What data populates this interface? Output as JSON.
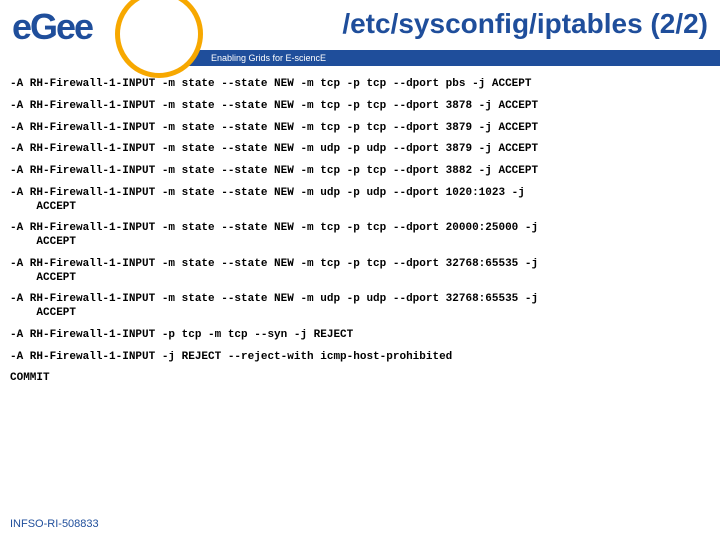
{
  "header": {
    "logo_text": "eGee",
    "title": "/etc/sysconfig/iptables (2/2)",
    "subtitle": "Enabling Grids for E-sciencE"
  },
  "rules": [
    "-A RH-Firewall-1-INPUT -m state --state NEW -m tcp -p tcp --dport pbs -j ACCEPT",
    "-A RH-Firewall-1-INPUT -m state --state NEW -m tcp -p tcp --dport 3878 -j ACCEPT",
    "-A RH-Firewall-1-INPUT -m state --state NEW -m tcp -p tcp --dport 3879 -j ACCEPT",
    "-A RH-Firewall-1-INPUT -m state --state NEW -m udp -p udp --dport 3879 -j ACCEPT",
    "-A RH-Firewall-1-INPUT -m state --state NEW -m tcp -p tcp --dport 3882 -j ACCEPT",
    "-A RH-Firewall-1-INPUT -m state --state NEW -m udp -p udp --dport 1020:1023 -j\n    ACCEPT",
    "-A RH-Firewall-1-INPUT -m state --state NEW -m tcp -p tcp --dport 20000:25000 -j\n    ACCEPT",
    "-A RH-Firewall-1-INPUT -m state --state NEW -m tcp -p tcp --dport 32768:65535 -j\n    ACCEPT",
    "-A RH-Firewall-1-INPUT -m state --state NEW -m udp -p udp --dport 32768:65535 -j\n    ACCEPT",
    "-A RH-Firewall-1-INPUT -p tcp -m tcp --syn -j REJECT",
    "-A RH-Firewall-1-INPUT -j REJECT --reject-with icmp-host-prohibited",
    "COMMIT"
  ],
  "footer": "INFSO-RI-508833",
  "colors": {
    "brand_blue": "#1f4e9b",
    "brand_orange": "#f7a800",
    "background": "#ffffff",
    "text": "#000000"
  },
  "typography": {
    "title_fontsize": 28,
    "subtitle_fontsize": 9,
    "body_fontsize": 11,
    "body_font": "Courier New",
    "footer_fontsize": 11
  }
}
